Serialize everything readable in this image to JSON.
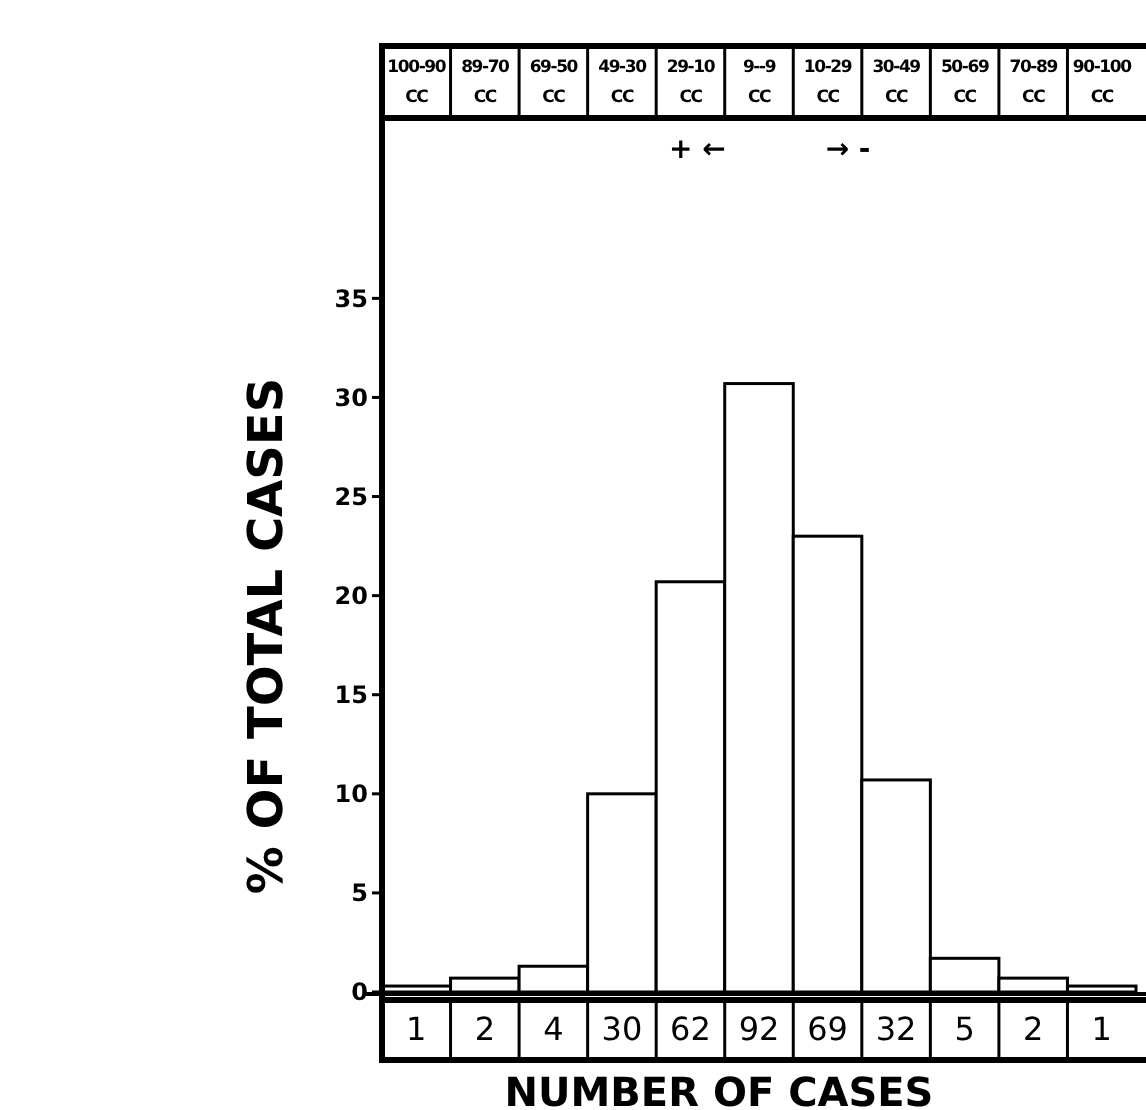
{
  "chart_data": {
    "type": "bar",
    "xlabel": "NUMBER OF CASES",
    "ylabel": "% OF TOTAL CASES",
    "categories": [
      "100-90 CC",
      "89-70 CC",
      "69-50 CC",
      "49-30 CC",
      "29-10 CC",
      "9--9 CC",
      "10-29 CC",
      "30-49 CC",
      "50-69 CC",
      "70-89 CC",
      "90-100 CC"
    ],
    "values": [
      0.3,
      0.7,
      1.3,
      10,
      20.7,
      30.7,
      23,
      10.7,
      1.7,
      0.7,
      0.3
    ],
    "color": "#ffffff",
    "ylim": [
      0,
      44
    ],
    "yticks": [
      0,
      5,
      10,
      15,
      20,
      25,
      30,
      35
    ],
    "annotations": [
      "+ ←",
      "→ -",
      "1",
      "2",
      "4",
      "30",
      "62",
      "92",
      "69",
      "32",
      "5",
      "2",
      "1"
    ]
  }
}
